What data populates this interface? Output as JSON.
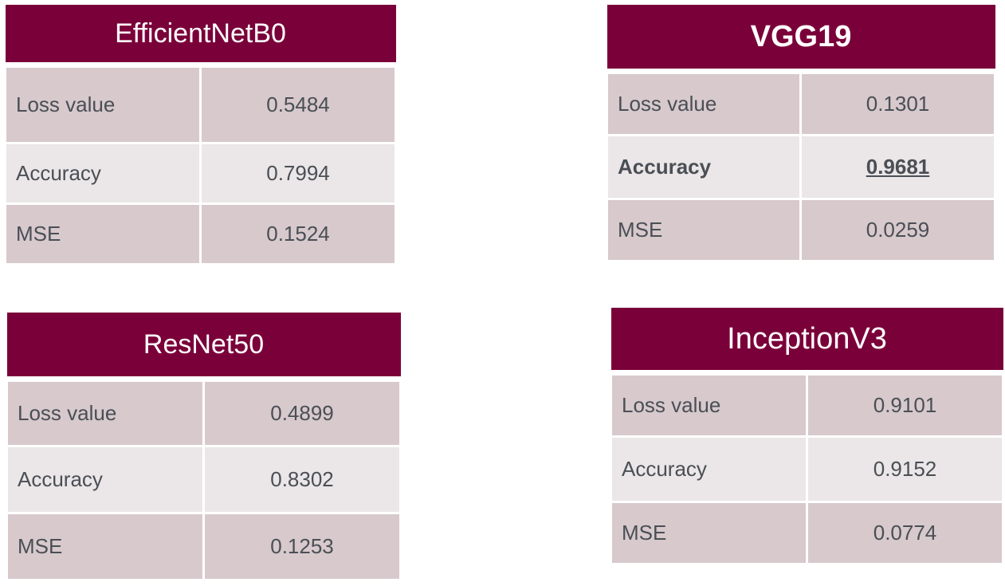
{
  "tables": {
    "efficientnet": {
      "title": "EfficientNetB0",
      "rows": [
        {
          "label": "Loss value",
          "value": "0.5484"
        },
        {
          "label": "Accuracy",
          "value": "0.7994"
        },
        {
          "label": "MSE",
          "value": "0.1524"
        }
      ]
    },
    "vgg19": {
      "title": "VGG19",
      "rows": [
        {
          "label": "Loss value",
          "value": "0.1301"
        },
        {
          "label": "Accuracy",
          "value": "0.9681"
        },
        {
          "label": "MSE",
          "value": "0.0259"
        }
      ]
    },
    "resnet50": {
      "title": "ResNet50",
      "rows": [
        {
          "label": "Loss value",
          "value": "0.4899"
        },
        {
          "label": "Accuracy",
          "value": "0.8302"
        },
        {
          "label": "MSE",
          "value": "0.1253"
        }
      ]
    },
    "inceptionv3": {
      "title": "InceptionV3",
      "rows": [
        {
          "label": "Loss value",
          "value": "0.9101"
        },
        {
          "label": "Accuracy",
          "value": "0.9152"
        },
        {
          "label": "MSE",
          "value": "0.0774"
        }
      ]
    }
  },
  "colors": {
    "header": "#7a0039",
    "row_dark": "#d7c9cc",
    "row_light": "#ebe6e7",
    "text": "#4a4f55"
  }
}
